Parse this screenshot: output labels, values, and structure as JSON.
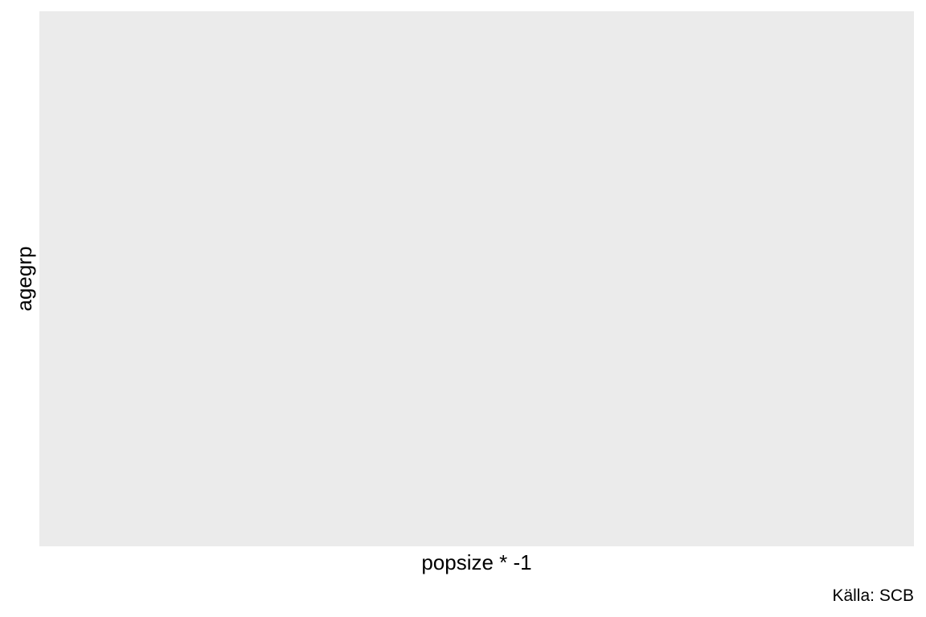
{
  "chart_data": {
    "type": "bar",
    "title": "",
    "xlabel": "popsize * -1",
    "ylabel": "agegrp",
    "caption": "Källa: SCB",
    "categories": [],
    "series": [],
    "grid": false,
    "panel_background": "#EBEBEB",
    "legend": "none"
  }
}
